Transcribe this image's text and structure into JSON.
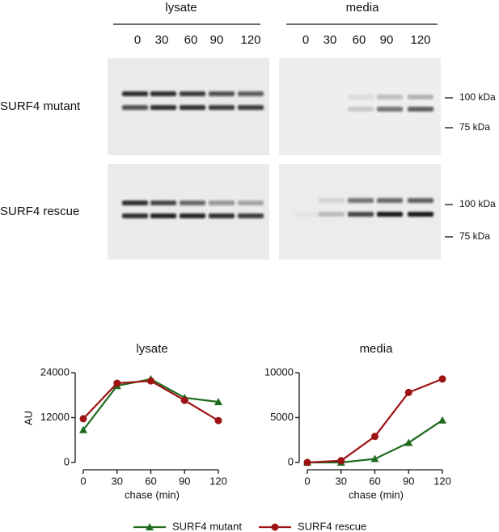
{
  "blot": {
    "groups": [
      "lysate",
      "media"
    ],
    "lanes": [
      [
        "0",
        "30",
        "60",
        "90",
        "120"
      ],
      [
        "0",
        "30",
        "60",
        "90",
        "120"
      ]
    ],
    "rows": [
      "SURF4 mutant",
      "SURF4 rescue"
    ],
    "markers": [
      [
        "100 kDa",
        "75 kDa"
      ],
      [
        "100 kDa",
        "75 kDa"
      ]
    ]
  },
  "chart_data": [
    {
      "type": "line",
      "title": "lysate",
      "x_label": "chase (min)",
      "y_label": "AU",
      "x": [
        0,
        30,
        60,
        90,
        120
      ],
      "xlim": [
        0,
        120
      ],
      "xticks": [
        0,
        30,
        60,
        90,
        120
      ],
      "ylim": [
        0,
        24000
      ],
      "yticks": [
        0,
        12000,
        24000
      ],
      "grid": false,
      "legend": "bottom",
      "series": [
        {
          "name": "SURF4 mutant",
          "color": "#1e6b1e",
          "marker": "triangle",
          "values": [
            8700,
            20500,
            22300,
            17300,
            16200
          ]
        },
        {
          "name": "SURF4 rescue",
          "color": "#9e1214",
          "marker": "circle",
          "values": [
            11700,
            21200,
            21800,
            16600,
            11200
          ]
        }
      ]
    },
    {
      "type": "line",
      "title": "media",
      "x_label": "chase (min)",
      "x": [
        0,
        30,
        60,
        90,
        120
      ],
      "xlim": [
        0,
        120
      ],
      "xticks": [
        0,
        30,
        60,
        90,
        120
      ],
      "ylim": [
        0,
        10000
      ],
      "yticks": [
        0,
        5000,
        10000
      ],
      "grid": false,
      "series": [
        {
          "name": "SURF4 mutant",
          "color": "#1e6b1e",
          "marker": "triangle",
          "values": [
            0,
            0,
            400,
            2200,
            4700
          ]
        },
        {
          "name": "SURF4 rescue",
          "color": "#9e1214",
          "marker": "circle",
          "values": [
            0,
            200,
            2900,
            7800,
            9300
          ]
        }
      ]
    }
  ]
}
